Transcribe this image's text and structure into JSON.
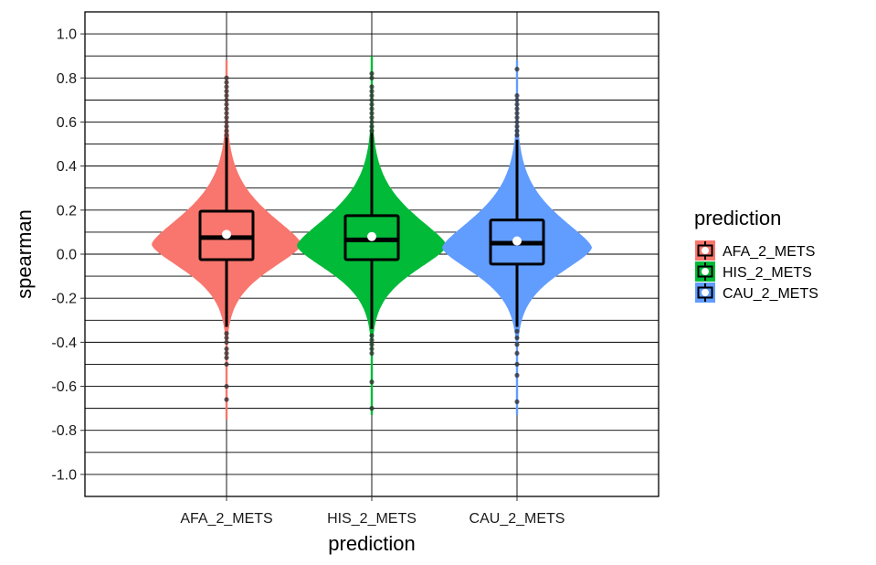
{
  "chart_data": {
    "type": "violin",
    "xlabel": "prediction",
    "ylabel": "spearman",
    "ylim": [
      -1.1,
      1.1
    ],
    "y_ticks": [
      "1.0",
      "0.8",
      "0.6",
      "0.4",
      "0.2",
      "0.0",
      "-0.2",
      "-0.4",
      "-0.6",
      "-0.8",
      "-1.0"
    ],
    "y_tick_values": [
      1.0,
      0.8,
      0.6,
      0.4,
      0.2,
      0.0,
      -0.2,
      -0.4,
      -0.6,
      -0.8,
      -1.0
    ],
    "grid": true,
    "legend": {
      "title": "prediction",
      "position": "right",
      "entries": [
        "AFA_2_METS",
        "HIS_2_METS",
        "CAU_2_METS"
      ]
    },
    "categories": [
      "AFA_2_METS",
      "HIS_2_METS",
      "CAU_2_METS"
    ],
    "series": [
      {
        "name": "AFA_2_METS",
        "color": "#F8766D",
        "min": -0.75,
        "max": 0.88,
        "q1": -0.025,
        "median": 0.075,
        "q3": 0.195,
        "mean": 0.09,
        "whisker_low": -0.33,
        "whisker_high": 0.53,
        "outliers": [
          0.8,
          0.78,
          0.76,
          0.74,
          0.72,
          0.7,
          0.68,
          0.66,
          0.64,
          0.62,
          0.6,
          0.58,
          0.56,
          0.54,
          -0.36,
          -0.38,
          -0.4,
          -0.43,
          -0.45,
          -0.47,
          -0.5,
          -0.6,
          -0.66
        ]
      },
      {
        "name": "HIS_2_METS",
        "color": "#00BA38",
        "min": -0.73,
        "max": 0.9,
        "q1": -0.025,
        "median": 0.065,
        "q3": 0.175,
        "mean": 0.08,
        "whisker_low": -0.34,
        "whisker_high": 0.55,
        "outliers": [
          0.82,
          0.8,
          0.76,
          0.74,
          0.72,
          0.7,
          0.68,
          0.66,
          0.64,
          0.62,
          0.6,
          0.58,
          0.56,
          -0.37,
          -0.39,
          -0.41,
          -0.43,
          -0.45,
          -0.58,
          -0.7
        ]
      },
      {
        "name": "CAU_2_METS",
        "color": "#619CFF",
        "min": -0.73,
        "max": 0.88,
        "q1": -0.045,
        "median": 0.05,
        "q3": 0.155,
        "mean": 0.06,
        "whisker_low": -0.33,
        "whisker_high": 0.52,
        "outliers": [
          0.84,
          0.72,
          0.7,
          0.68,
          0.66,
          0.64,
          0.62,
          0.6,
          0.58,
          0.56,
          0.54,
          -0.35,
          -0.38,
          -0.41,
          -0.45,
          -0.5,
          -0.55,
          -0.67
        ]
      }
    ]
  }
}
